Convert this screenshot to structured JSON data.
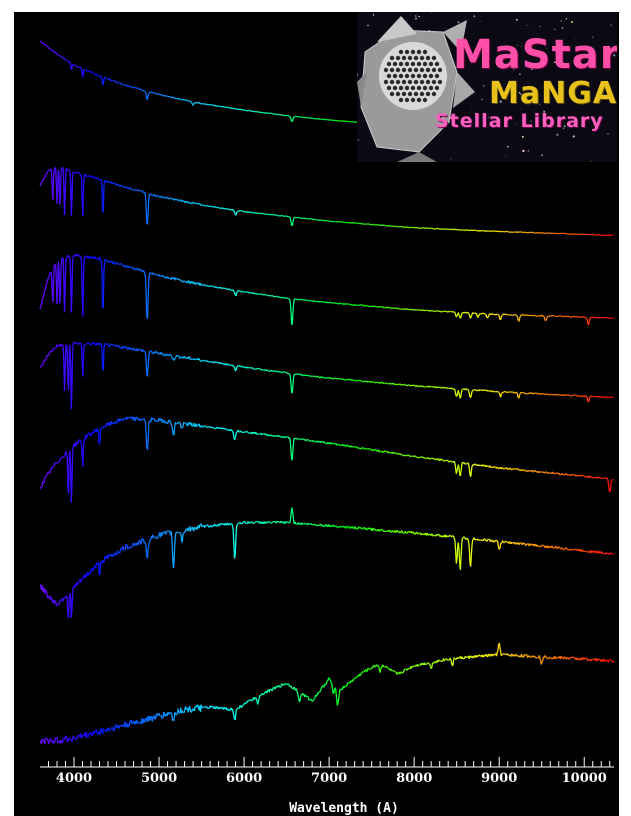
{
  "chart_data": {
    "type": "line",
    "title": "",
    "xlabel": "Wavelength (A)",
    "ylabel": "",
    "xlim": [
      3600,
      10350
    ],
    "x_ticks": [
      4000,
      5000,
      6000,
      7000,
      8000,
      9000,
      10000
    ],
    "x_tick_labels": [
      "4000",
      "5000",
      "6000",
      "7000",
      "8000",
      "9000",
      "10000"
    ],
    "grid": false,
    "color_encoding": "rainbow by wavelength (violet at 3600 to red at 10350)",
    "series": [
      {
        "x": [
          3600,
          3700,
          3800,
          4000,
          4300,
          4600,
          5000,
          5500,
          6000,
          6500,
          7000,
          8000,
          9000,
          10350
        ],
        "values": [
          0.92,
          0.86,
          0.8,
          0.7,
          0.6,
          0.52,
          0.43,
          0.35,
          0.29,
          0.24,
          0.2,
          0.14,
          0.1,
          0.07
        ],
        "absorption": [
          [
            3970,
            0.06
          ],
          [
            4102,
            0.08
          ],
          [
            4340,
            0.08
          ],
          [
            4861,
            0.08
          ],
          [
            5400,
            0.03
          ],
          [
            6563,
            0.05
          ]
        ]
      },
      {
        "x": [
          3600,
          3700,
          3800,
          4000,
          4300,
          4600,
          5000,
          5500,
          6000,
          6500,
          7000,
          8000,
          9000,
          10350
        ],
        "values": [
          0.6,
          0.75,
          0.8,
          0.74,
          0.66,
          0.58,
          0.48,
          0.39,
          0.32,
          0.27,
          0.22,
          0.15,
          0.11,
          0.07
        ],
        "absorption": [
          [
            3750,
            0.35
          ],
          [
            3800,
            0.4
          ],
          [
            3835,
            0.45
          ],
          [
            3889,
            0.5
          ],
          [
            3970,
            0.5
          ],
          [
            4102,
            0.45
          ],
          [
            4340,
            0.4
          ],
          [
            4861,
            0.35
          ],
          [
            5900,
            0.05
          ],
          [
            6563,
            0.1
          ]
        ]
      },
      {
        "x": [
          3600,
          3700,
          3800,
          4000,
          4300,
          4600,
          5000,
          5500,
          6000,
          6500,
          7000,
          8000,
          9000,
          10350
        ],
        "values": [
          0.2,
          0.55,
          0.75,
          0.8,
          0.76,
          0.68,
          0.57,
          0.47,
          0.39,
          0.32,
          0.27,
          0.19,
          0.14,
          0.1
        ],
        "absorption": [
          [
            3750,
            0.4
          ],
          [
            3800,
            0.5
          ],
          [
            3835,
            0.55
          ],
          [
            3889,
            0.6
          ],
          [
            3970,
            0.65
          ],
          [
            4102,
            0.7
          ],
          [
            4340,
            0.65
          ],
          [
            4861,
            0.55
          ],
          [
            5900,
            0.06
          ],
          [
            6563,
            0.3
          ],
          [
            8498,
            0.05
          ],
          [
            8542,
            0.07
          ],
          [
            8662,
            0.06
          ],
          [
            8750,
            0.05
          ],
          [
            8863,
            0.05
          ],
          [
            9015,
            0.06
          ],
          [
            9229,
            0.07
          ],
          [
            9546,
            0.06
          ],
          [
            10049,
            0.08
          ]
        ]
      },
      {
        "x": [
          3600,
          3700,
          3800,
          4000,
          4300,
          4600,
          5000,
          5500,
          6000,
          6500,
          7000,
          8000,
          9000,
          10350
        ],
        "values": [
          0.45,
          0.62,
          0.72,
          0.75,
          0.74,
          0.7,
          0.63,
          0.55,
          0.47,
          0.4,
          0.34,
          0.25,
          0.18,
          0.11
        ],
        "absorption": [
          [
            3889,
            0.55
          ],
          [
            3933,
            0.6
          ],
          [
            3970,
            0.8
          ],
          [
            4102,
            0.4
          ],
          [
            4340,
            0.35
          ],
          [
            4861,
            0.3
          ],
          [
            5170,
            0.05
          ],
          [
            5900,
            0.06
          ],
          [
            6563,
            0.25
          ],
          [
            8498,
            0.1
          ],
          [
            8542,
            0.12
          ],
          [
            8662,
            0.1
          ],
          [
            9015,
            0.06
          ],
          [
            9229,
            0.06
          ],
          [
            10049,
            0.06
          ]
        ]
      },
      {
        "x": [
          3600,
          3700,
          3800,
          4000,
          4300,
          4600,
          5000,
          5500,
          6000,
          6500,
          7000,
          8000,
          9000,
          10350
        ],
        "values": [
          0.15,
          0.3,
          0.42,
          0.6,
          0.78,
          0.88,
          0.86,
          0.8,
          0.74,
          0.68,
          0.62,
          0.48,
          0.36,
          0.24
        ],
        "absorption": [
          [
            3933,
            0.5
          ],
          [
            3970,
            0.6
          ],
          [
            4102,
            0.3
          ],
          [
            4300,
            0.2
          ],
          [
            4861,
            0.35
          ],
          [
            5170,
            0.15
          ],
          [
            5270,
            0.06
          ],
          [
            5890,
            0.1
          ],
          [
            6563,
            0.25
          ],
          [
            8498,
            0.12
          ],
          [
            8542,
            0.15
          ],
          [
            8662,
            0.13
          ],
          [
            10300,
            0.15
          ]
        ]
      },
      {
        "x": [
          3600,
          3700,
          3800,
          4000,
          4300,
          4600,
          5000,
          5500,
          6000,
          6500,
          7000,
          8000,
          9000,
          10350
        ],
        "values": [
          0.3,
          0.2,
          0.12,
          0.28,
          0.52,
          0.66,
          0.78,
          0.86,
          0.9,
          0.9,
          0.87,
          0.8,
          0.72,
          0.6
        ],
        "absorption": [
          [
            3933,
            0.25
          ],
          [
            3970,
            0.28
          ],
          [
            4300,
            0.12
          ],
          [
            4861,
            0.2
          ],
          [
            5170,
            0.35
          ],
          [
            5270,
            0.1
          ],
          [
            5890,
            0.35
          ],
          [
            6563,
            -0.15
          ],
          [
            8498,
            0.25
          ],
          [
            8542,
            0.3
          ],
          [
            8662,
            0.28
          ],
          [
            9000,
            0.08
          ]
        ]
      },
      {
        "x": [
          3600,
          3800,
          4000,
          4300,
          4600,
          5000,
          5300,
          5600,
          5900,
          6200,
          6500,
          6800,
          7000,
          7100,
          7400,
          7600,
          7800,
          8000,
          8400,
          9000,
          9500,
          10000,
          10350
        ],
        "values": [
          0.05,
          0.06,
          0.08,
          0.14,
          0.2,
          0.28,
          0.34,
          0.36,
          0.34,
          0.48,
          0.58,
          0.42,
          0.62,
          0.5,
          0.68,
          0.76,
          0.66,
          0.74,
          0.8,
          0.84,
          0.82,
          0.8,
          0.78
        ],
        "absorption": [
          [
            5170,
            0.08
          ],
          [
            5890,
            0.1
          ],
          [
            6160,
            0.08
          ],
          [
            6650,
            0.1
          ],
          [
            7050,
            0.08
          ],
          [
            7100,
            0.12
          ],
          [
            7600,
            0.08
          ],
          [
            8200,
            0.06
          ],
          [
            8450,
            0.06
          ],
          [
            9000,
            -0.1
          ],
          [
            9500,
            0.06
          ]
        ]
      }
    ]
  },
  "logo": {
    "title": "MaStar",
    "line2": "MaNGA",
    "line3": "Stellar Library",
    "colors": {
      "title": "#ff4fa8",
      "line2": "#e8c21a",
      "line3": "#ff5fc0"
    }
  }
}
